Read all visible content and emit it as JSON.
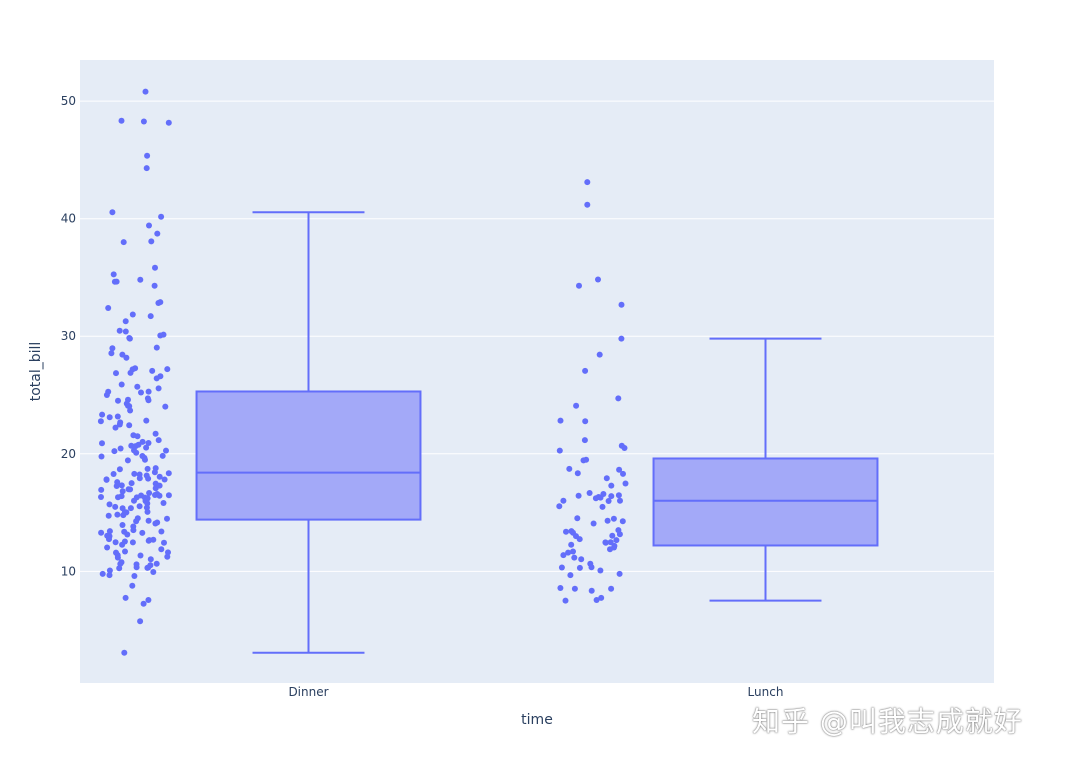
{
  "chart_data": {
    "type": "box",
    "xlabel": "time",
    "ylabel": "total_bill",
    "categories": [
      "Dinner",
      "Lunch"
    ],
    "ylim": [
      0.5,
      53.5
    ],
    "yticks": [
      10,
      20,
      30,
      40,
      50
    ],
    "grid": true,
    "colors": {
      "plot_bg": "#e5ecf6",
      "grid": "#ffffff",
      "box_line": "#636efa",
      "box_fill": "#a3a9f8",
      "points": "#636efa",
      "text": "#2a3f5f"
    },
    "boxes": [
      {
        "category": "Dinner",
        "whisker_low": 3.07,
        "q1": 14.4,
        "median": 18.4,
        "q3": 25.3,
        "whisker_high": 40.55,
        "points": [
          50.81,
          48.33,
          48.27,
          48.17,
          45.35,
          44.3,
          40.55,
          40.17,
          39.42,
          38.73,
          38.07,
          38.01,
          35.83,
          35.26,
          34.81,
          34.65,
          34.63,
          34.3,
          32.9,
          32.83,
          32.4,
          31.85,
          31.71,
          31.27,
          30.46,
          30.4,
          30.14,
          30.06,
          29.85,
          29.8,
          29.03,
          28.97,
          28.55,
          28.44,
          28.17,
          27.28,
          27.2,
          27.18,
          27.05,
          26.86,
          26.88,
          26.59,
          26.41,
          25.89,
          25.71,
          25.56,
          25.29,
          25.28,
          25.21,
          25.0,
          24.71,
          24.59,
          24.55,
          24.52,
          24.27,
          24.08,
          24.06,
          24.01,
          23.68,
          23.33,
          23.17,
          23.1,
          22.82,
          22.76,
          22.67,
          22.49,
          22.42,
          22.23,
          21.7,
          21.58,
          21.5,
          21.16,
          21.01,
          20.92,
          20.9,
          20.76,
          20.69,
          20.65,
          20.53,
          20.45,
          20.29,
          20.27,
          20.23,
          20.08,
          19.82,
          19.81,
          19.77,
          19.65,
          19.49,
          19.44,
          18.78,
          18.71,
          18.69,
          18.43,
          18.35,
          18.29,
          18.28,
          18.24,
          18.15,
          18.04,
          17.92,
          17.89,
          17.82,
          17.81,
          17.78,
          17.59,
          17.51,
          17.46,
          17.31,
          17.29,
          17.26,
          17.07,
          16.99,
          16.97,
          16.93,
          16.82,
          16.66,
          16.58,
          16.49,
          16.47,
          16.45,
          16.43,
          16.4,
          16.32,
          16.31,
          16.29,
          16.27,
          16.21,
          16.04,
          16.0,
          15.98,
          15.81,
          15.77,
          15.69,
          15.53,
          15.48,
          15.42,
          15.38,
          15.36,
          15.06,
          15.04,
          15.01,
          14.83,
          14.78,
          14.73,
          14.52,
          14.48,
          14.31,
          14.26,
          14.15,
          14.07,
          13.94,
          13.81,
          13.51,
          13.42,
          13.39,
          13.37,
          13.28,
          13.27,
          13.13,
          13.03,
          13.0,
          12.9,
          12.74,
          12.69,
          12.66,
          12.6,
          12.54,
          12.48,
          12.46,
          12.43,
          12.26,
          12.03,
          11.87,
          11.69,
          11.61,
          11.59,
          11.38,
          11.35,
          11.24,
          11.17,
          11.02,
          10.77,
          10.65,
          10.63,
          10.59,
          10.51,
          10.34,
          10.33,
          10.29,
          10.27,
          10.07,
          9.94,
          9.78,
          9.68,
          9.6,
          8.77,
          7.74,
          7.56,
          7.25,
          5.75,
          3.07
        ]
      },
      {
        "category": "Lunch",
        "whisker_low": 7.51,
        "q1": 12.2,
        "median": 16.0,
        "q3": 19.6,
        "whisker_high": 29.8,
        "points": [
          43.11,
          41.19,
          34.83,
          34.3,
          32.68,
          29.8,
          28.44,
          27.05,
          24.71,
          24.08,
          22.82,
          22.76,
          21.16,
          20.69,
          20.49,
          20.27,
          19.49,
          19.44,
          18.71,
          18.64,
          18.35,
          18.29,
          17.92,
          17.47,
          17.29,
          16.66,
          16.58,
          16.47,
          16.43,
          16.4,
          16.32,
          16.27,
          16.21,
          16.0,
          16.0,
          15.98,
          15.53,
          15.48,
          14.52,
          14.48,
          14.31,
          14.26,
          14.07,
          13.51,
          13.42,
          13.37,
          13.28,
          13.16,
          13.03,
          13.0,
          12.74,
          12.66,
          12.48,
          12.46,
          12.43,
          12.26,
          12.16,
          12.03,
          11.87,
          11.69,
          11.59,
          11.38,
          11.17,
          11.02,
          10.65,
          10.34,
          10.33,
          10.29,
          10.07,
          9.78,
          9.68,
          8.58,
          8.52,
          8.51,
          8.35,
          7.74,
          7.56,
          7.51
        ]
      }
    ]
  },
  "watermark": "知乎 @叫我志成就好"
}
